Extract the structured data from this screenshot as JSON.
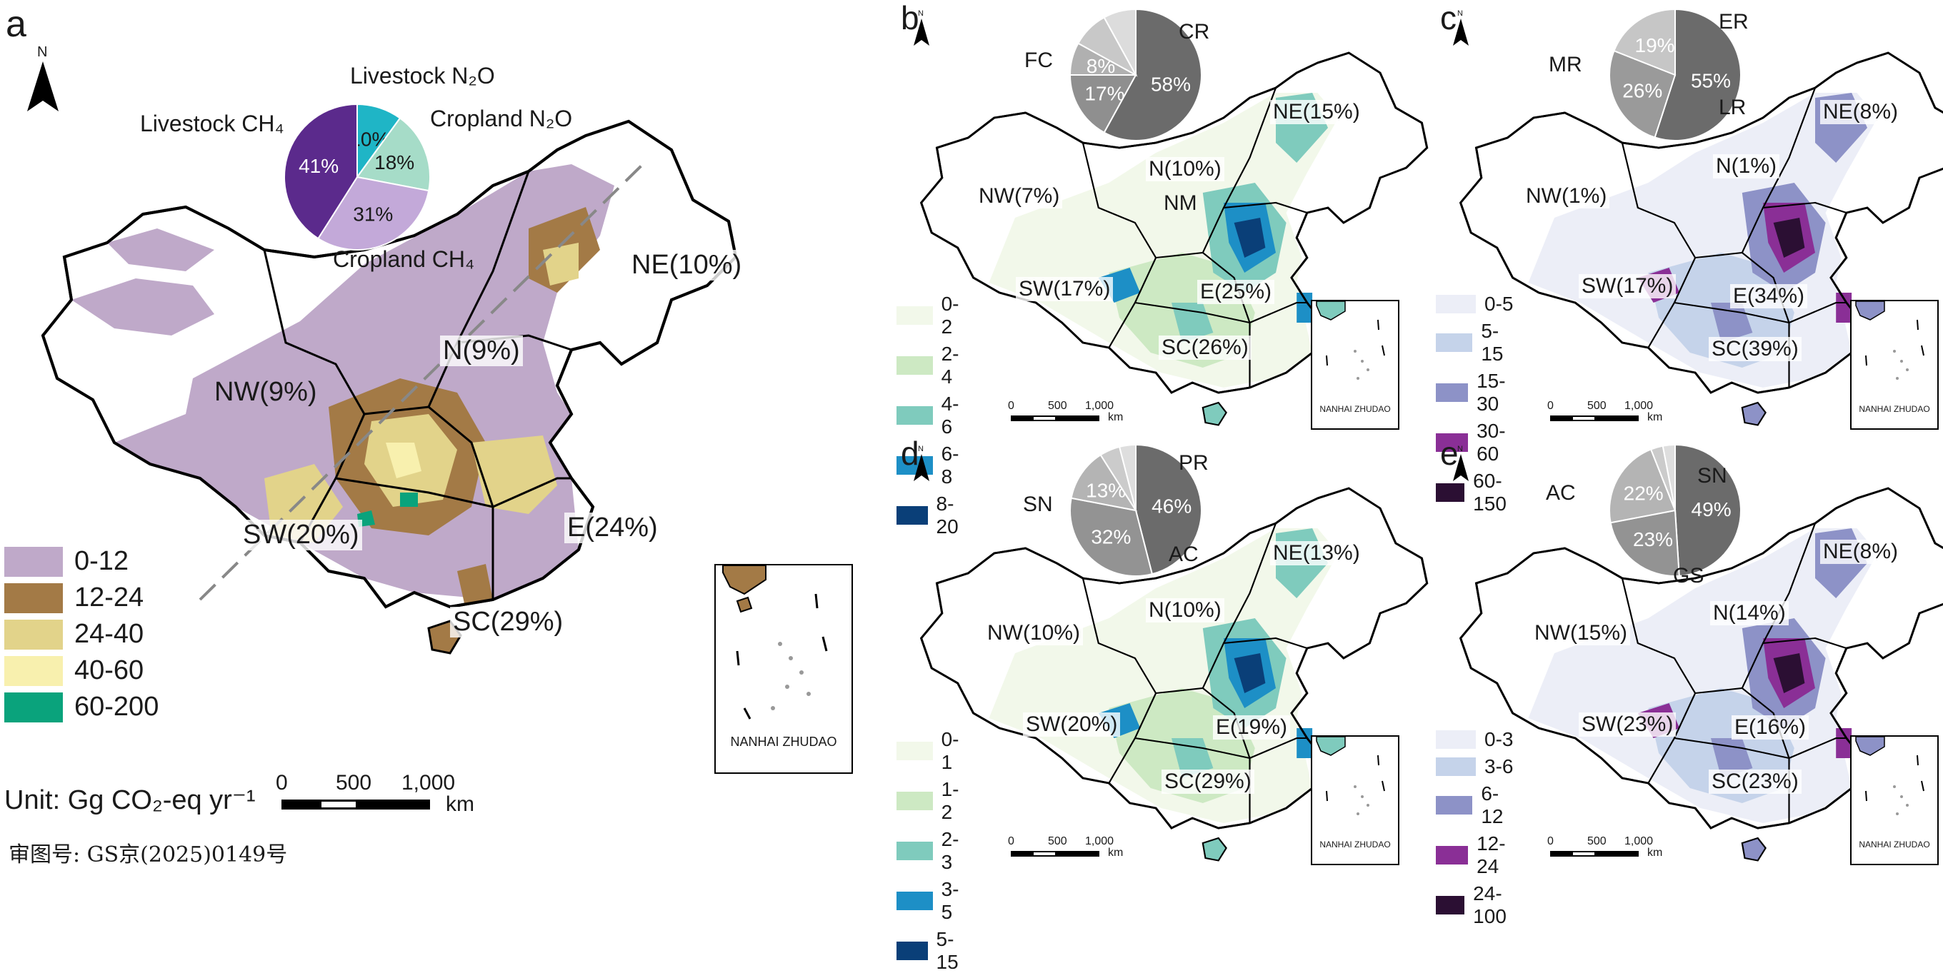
{
  "panel_a": {
    "label": "a",
    "north": "N",
    "pie": {
      "slices": [
        {
          "name": "Livestock N₂O",
          "pct": "10%",
          "value": 10,
          "color": "#1fb5c6"
        },
        {
          "name": "Cropland N₂O",
          "pct": "18%",
          "value": 18,
          "color": "#a6dcc8"
        },
        {
          "name": "Cropland CH₄",
          "pct": "31%",
          "value": 31,
          "color": "#c3a9d9"
        },
        {
          "name": "Livestock CH₄",
          "pct": "41%",
          "value": 41,
          "color": "#5b2a8c"
        }
      ]
    },
    "regions": [
      {
        "name": "NE(10%)"
      },
      {
        "name": "N(9%)"
      },
      {
        "name": "NW(9%)"
      },
      {
        "name": "SW(20%)"
      },
      {
        "name": "E(24%)"
      },
      {
        "name": "SC(29%)"
      }
    ],
    "legend": [
      {
        "label": "0-12",
        "color": "#bfa9c9"
      },
      {
        "label": "12-24",
        "color": "#a37a46"
      },
      {
        "label": "24-40",
        "color": "#e2d38a"
      },
      {
        "label": "40-60",
        "color": "#f8f0ae"
      },
      {
        "label": "60-200",
        "color": "#0aa37c"
      }
    ],
    "unit": "Unit: Gg CO₂-eq yr⁻¹",
    "scale": {
      "ticks": [
        "0",
        "500",
        "1,000"
      ],
      "unit": "km"
    },
    "inset": "NANHAI ZHUDAO",
    "approval": "审图号: GS京(2025)0149号"
  },
  "panel_b": {
    "label": "b",
    "north": "N",
    "pie": {
      "slices": [
        {
          "name": "FC",
          "pct": "58%",
          "value": 58,
          "color": "#6b6b6b"
        },
        {
          "name": "NM",
          "pct": "17%",
          "value": 17,
          "color": "#8f8f8f"
        },
        {
          "name": "CR",
          "pct": "8%",
          "value": 8,
          "color": "#b0b0b0"
        },
        {
          "name": "",
          "pct": "",
          "value": 9,
          "color": "#c8c8c8"
        },
        {
          "name": "",
          "pct": "",
          "value": 8,
          "color": "#dcdcdc"
        }
      ]
    },
    "regions": [
      {
        "name": "NE(15%)"
      },
      {
        "name": "N(10%)"
      },
      {
        "name": "NW(7%)"
      },
      {
        "name": "SW(17%)"
      },
      {
        "name": "E(25%)"
      },
      {
        "name": "SC(26%)"
      }
    ],
    "legend": [
      {
        "label": "0-2",
        "color": "#f2f8ea"
      },
      {
        "label": "2-4",
        "color": "#cde9c3"
      },
      {
        "label": "4-6",
        "color": "#7fcbbd"
      },
      {
        "label": "6-8",
        "color": "#1d8fc6"
      },
      {
        "label": "8-20",
        "color": "#0a3f78"
      }
    ],
    "scale": {
      "ticks": [
        "0",
        "500",
        "1,000"
      ],
      "unit": "km"
    },
    "inset": "NANHAI ZHUDAO"
  },
  "panel_c": {
    "label": "c",
    "north": "N",
    "pie": {
      "slices": [
        {
          "name": "MR",
          "pct": "55%",
          "value": 55,
          "color": "#6b6b6b"
        },
        {
          "name": "LR",
          "pct": "26%",
          "value": 26,
          "color": "#9a9a9a"
        },
        {
          "name": "ER",
          "pct": "19%",
          "value": 19,
          "color": "#c6c6c6"
        }
      ]
    },
    "regions": [
      {
        "name": "NE(8%)"
      },
      {
        "name": "N(1%)"
      },
      {
        "name": "NW(1%)"
      },
      {
        "name": "SW(17%)"
      },
      {
        "name": "E(34%)"
      },
      {
        "name": "SC(39%)"
      }
    ],
    "legend": [
      {
        "label": "0-5",
        "color": "#eceef7"
      },
      {
        "label": "5-15",
        "color": "#c5d3ea"
      },
      {
        "label": "15-30",
        "color": "#8d92c7"
      },
      {
        "label": "30-60",
        "color": "#8a2f96"
      },
      {
        "label": "60-150",
        "color": "#2b0f33"
      }
    ],
    "scale": {
      "ticks": [
        "0",
        "500",
        "1,000"
      ],
      "unit": "km"
    },
    "inset": "NANHAI ZHUDAO"
  },
  "panel_d": {
    "label": "d",
    "north": "N",
    "pie": {
      "slices": [
        {
          "name": "SN",
          "pct": "46%",
          "value": 46,
          "color": "#6b6b6b"
        },
        {
          "name": "AC",
          "pct": "32%",
          "value": 32,
          "color": "#939393"
        },
        {
          "name": "PR",
          "pct": "13%",
          "value": 13,
          "color": "#b4b4b4"
        },
        {
          "name": "",
          "pct": "",
          "value": 5,
          "color": "#cbcbcb"
        },
        {
          "name": "",
          "pct": "",
          "value": 4,
          "color": "#dedede"
        }
      ]
    },
    "regions": [
      {
        "name": "NE(13%)"
      },
      {
        "name": "N(10%)"
      },
      {
        "name": "NW(10%)"
      },
      {
        "name": "SW(20%)"
      },
      {
        "name": "E(19%)"
      },
      {
        "name": "SC(29%)"
      }
    ],
    "legend": [
      {
        "label": "0-1",
        "color": "#f2f8ea"
      },
      {
        "label": "1-2",
        "color": "#cde9c3"
      },
      {
        "label": "2-3",
        "color": "#7fcbbd"
      },
      {
        "label": "3-5",
        "color": "#1d8fc6"
      },
      {
        "label": "5-15",
        "color": "#0a3f78"
      }
    ],
    "scale": {
      "ticks": [
        "0",
        "500",
        "1,000"
      ],
      "unit": "km"
    },
    "inset": "NANHAI ZHUDAO"
  },
  "panel_e": {
    "label": "e",
    "north": "N",
    "pie": {
      "slices": [
        {
          "name": "AC",
          "pct": "49%",
          "value": 49,
          "color": "#6b6b6b"
        },
        {
          "name": "GS",
          "pct": "23%",
          "value": 23,
          "color": "#939393"
        },
        {
          "name": "SN",
          "pct": "22%",
          "value": 22,
          "color": "#b4b4b4"
        },
        {
          "name": "",
          "pct": "",
          "value": 3,
          "color": "#cbcbcb"
        },
        {
          "name": "",
          "pct": "",
          "value": 3,
          "color": "#dedede"
        }
      ]
    },
    "regions": [
      {
        "name": "NE(8%)"
      },
      {
        "name": "N(14%)"
      },
      {
        "name": "NW(15%)"
      },
      {
        "name": "SW(23%)"
      },
      {
        "name": "E(16%)"
      },
      {
        "name": "SC(23%)"
      }
    ],
    "legend": [
      {
        "label": "0-3",
        "color": "#eceef7"
      },
      {
        "label": "3-6",
        "color": "#c5d3ea"
      },
      {
        "label": "6-12",
        "color": "#8d92c7"
      },
      {
        "label": "12-24",
        "color": "#8a2f96"
      },
      {
        "label": "24-100",
        "color": "#2b0f33"
      }
    ],
    "scale": {
      "ticks": [
        "0",
        "500",
        "1,000"
      ],
      "unit": "km"
    },
    "inset": "NANHAI ZHUDAO"
  }
}
